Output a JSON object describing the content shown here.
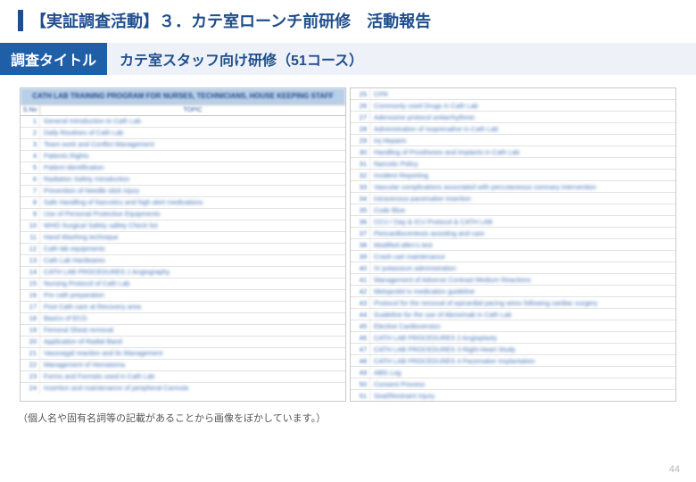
{
  "header": {
    "title": "【実証調査活動】３．カテ室ローンチ前研修　活動報告"
  },
  "subheader": {
    "label": "調査タイトル",
    "text": "カテ室スタッフ向け研修（51コース）"
  },
  "table": {
    "main_header": "CATH LAB TRAINING PROGRAM FOR NURSES, TECHNICIANS, HOUSE KEEPING STAFF",
    "col_sn": "S.No",
    "col_topic": "TOPIC",
    "left_rows": [
      {
        "n": "1",
        "t": "General Introduction to Cath Lab"
      },
      {
        "n": "2",
        "t": "Daily Routines of Cath Lab"
      },
      {
        "n": "3",
        "t": "Team work and Conflict Management"
      },
      {
        "n": "4",
        "t": "Patients Rights"
      },
      {
        "n": "5",
        "t": "Patient Identification"
      },
      {
        "n": "6",
        "t": "Radiation Safety Introduction"
      },
      {
        "n": "7",
        "t": "Prevention of Needle stick injury"
      },
      {
        "n": "8",
        "t": "Safe Handling of Narcotics and high alert medications"
      },
      {
        "n": "9",
        "t": "Use of Personal Protective Equipments"
      },
      {
        "n": "10",
        "t": "WHO Surgical Safety safety Check list"
      },
      {
        "n": "11",
        "t": "Hand Washing technique"
      },
      {
        "n": "12",
        "t": "Cath lab equipments"
      },
      {
        "n": "13",
        "t": "Cath Lab Hardwares"
      },
      {
        "n": "14",
        "t": "CATH LAB PROCEDURES 1 Angiography"
      },
      {
        "n": "15",
        "t": "Nursing Protocol of Cath Lab"
      },
      {
        "n": "16",
        "t": "Pre cath preparation"
      },
      {
        "n": "17",
        "t": "Post Cath care at Recovery area"
      },
      {
        "n": "18",
        "t": "Basics of ECG"
      },
      {
        "n": "19",
        "t": "Femoral Sheat removal"
      },
      {
        "n": "20",
        "t": "Application of Radial Band"
      },
      {
        "n": "21",
        "t": "Vasovagal reaction and its Management"
      },
      {
        "n": "22",
        "t": "Management of Hematoma"
      },
      {
        "n": "23",
        "t": "Forms and Formats used in Cath Lab"
      },
      {
        "n": "24",
        "t": "Insertion and maintenance of peripheral Cannula"
      }
    ],
    "right_rows": [
      {
        "n": "25",
        "t": "CPR"
      },
      {
        "n": "26",
        "t": "Commonly used Drugs in Cath Lab"
      },
      {
        "n": "27",
        "t": "Adenosine protocol   antiarrhythmic"
      },
      {
        "n": "28",
        "t": "Administration of Isoprenaline in Cath Lab"
      },
      {
        "n": "29",
        "t": "Inj Heparin"
      },
      {
        "n": "30",
        "t": "Handling of Prostheses and Implants in Cath Lab"
      },
      {
        "n": "31",
        "t": "Narcotic Policy"
      },
      {
        "n": "32",
        "t": "Incident Reporting"
      },
      {
        "n": "33",
        "t": "Vascular complications associated with percutaneous coronary intervention"
      },
      {
        "n": "34",
        "t": "Intravenous pacemaker insertion"
      },
      {
        "n": "35",
        "t": "Code Blue"
      },
      {
        "n": "36",
        "t": "CCU / Day & ICU Protocol & CATH LAB"
      },
      {
        "n": "37",
        "t": "Pericardiocentesis   assisting and care"
      },
      {
        "n": "38",
        "t": "Modified allen's test"
      },
      {
        "n": "39",
        "t": "Crash cart maintenance"
      },
      {
        "n": "40",
        "t": "IV potassium administration"
      },
      {
        "n": "41",
        "t": "Management of Adverse Contrast Medium Reactions"
      },
      {
        "n": "42",
        "t": "Metoprolol iv   medication guideline"
      },
      {
        "n": "43",
        "t": "Protocol for the removal of epicardial pacing wires following cardiac surgery"
      },
      {
        "n": "44",
        "t": "Guideline for the use of Abciximab in Cath Lab"
      },
      {
        "n": "45",
        "t": "Elective Cardioversion"
      },
      {
        "n": "46",
        "t": "CATH LAB PROCEDURES 2 Angioplasty"
      },
      {
        "n": "47",
        "t": "CATH LAB PROCEDURES 3 Right Heart Study"
      },
      {
        "n": "48",
        "t": "CATH LAB PROCEDURES 4 Pacemaker Implantation"
      },
      {
        "n": "49",
        "t": "ABG Log"
      },
      {
        "n": "50",
        "t": "Consent Process"
      },
      {
        "n": "51",
        "t": "Seat/Restraint Injury"
      }
    ]
  },
  "footnote": "（個人名や固有名詞等の記載があることから画像をぼかしています。）",
  "page_number": "44"
}
